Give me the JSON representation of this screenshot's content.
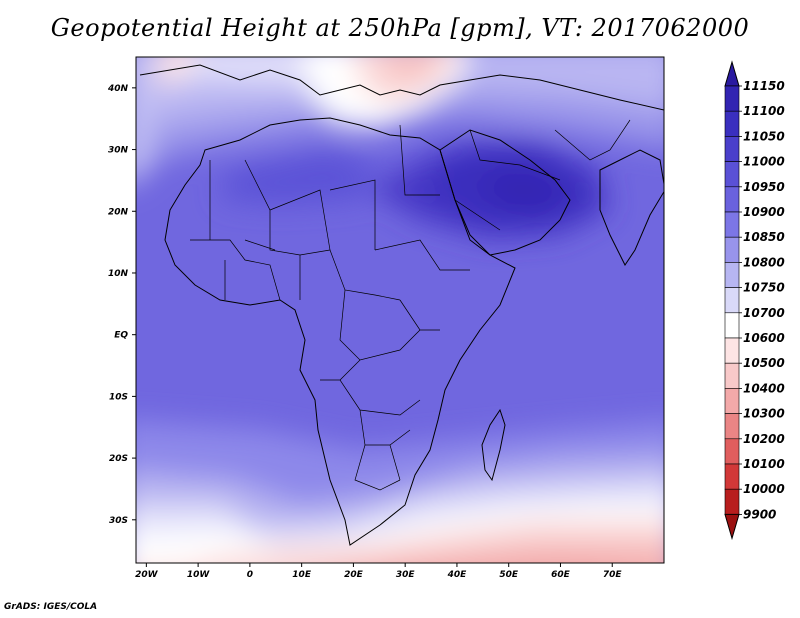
{
  "title": "Geopotential Height at 250hPa [gpm], VT: 2017062000",
  "footer": "GrADS: IGES/COLA",
  "map": {
    "lat_labels": [
      "40N",
      "30N",
      "20N",
      "10N",
      "EQ",
      "10S",
      "20S",
      "30S"
    ],
    "lon_labels": [
      "20W",
      "10W",
      "0",
      "10E",
      "20E",
      "30E",
      "40E",
      "50E",
      "60E",
      "70E"
    ],
    "extent": {
      "lon_min": -22,
      "lon_max": 80,
      "lat_min": -37,
      "lat_max": 45
    }
  },
  "colorbar": {
    "levels": [
      11150,
      11100,
      11050,
      11000,
      10950,
      10900,
      10850,
      10800,
      10750,
      10700,
      10600,
      10500,
      10400,
      10300,
      10200,
      10100,
      10000,
      9900
    ],
    "colors": [
      "#2a1aa0",
      "#3224b2",
      "#3a2fbf",
      "#4a3fcb",
      "#5a51d6",
      "#6a62de",
      "#7c76e6",
      "#9894ec",
      "#b7b6f2",
      "#d9d9f8",
      "#ffffff",
      "#fde4e4",
      "#f8c9c9",
      "#f3a9a9",
      "#ea8585",
      "#e05e5e",
      "#d23838",
      "#b81e1e",
      "#9a1010"
    ],
    "label_rows": [
      "11150",
      "11100",
      "11050",
      "11000",
      "10950",
      "10900",
      "10850",
      "10800",
      "10750",
      "10700",
      "10600",
      "10500",
      "10400",
      "10300",
      "10200",
      "10100",
      "10000",
      "9900"
    ]
  }
}
